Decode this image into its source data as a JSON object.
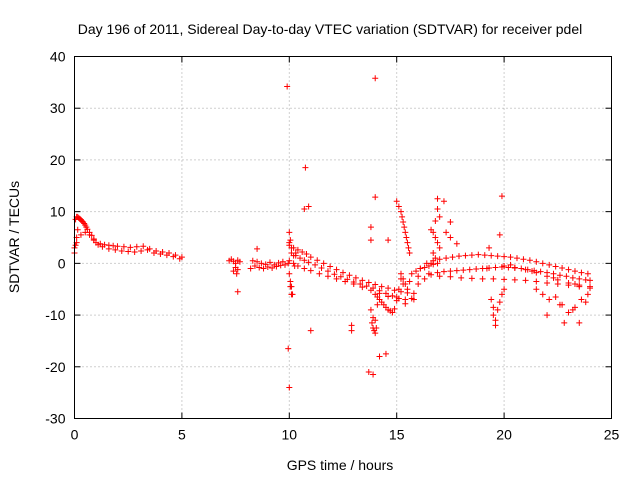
{
  "chart_data": {
    "type": "scatter",
    "title": "Day 196 of 2011, Sidereal Day-to-day VTEC variation (SDTVAR) for receiver pdel",
    "xlabel": "GPS time / hours",
    "ylabel": "SDTVAR / TECUs",
    "xlim": [
      0,
      25
    ],
    "ylim": [
      -30,
      40
    ],
    "xticks": [
      0,
      5,
      10,
      15,
      20,
      25
    ],
    "yticks": [
      -30,
      -20,
      -10,
      0,
      10,
      20,
      30,
      40
    ],
    "xtick_labels": [
      "0",
      "5",
      "10",
      "15",
      "20",
      "25"
    ],
    "ytick_labels": [
      "-30",
      "-20",
      "-10",
      "0",
      "10",
      "20",
      "30",
      "40"
    ],
    "grid": true,
    "marker": "+",
    "color": "#ff0000",
    "series": [
      {
        "name": "SDTVAR",
        "x": [
          0.0,
          0.05,
          0.1,
          0.15,
          0.2,
          0.25,
          0.3,
          0.35,
          0.4,
          0.45,
          0.5,
          0.55,
          0.6,
          0.7,
          0.8,
          0.9,
          1.0,
          1.2,
          1.4,
          1.6,
          1.8,
          2.0,
          2.3,
          2.6,
          2.9,
          3.2,
          3.5,
          3.8,
          4.1,
          4.4,
          4.7,
          5.0,
          0.1,
          0.3,
          0.5,
          0.7,
          0.9,
          1.1,
          1.3,
          1.6,
          1.9,
          2.2,
          2.5,
          2.8,
          3.1,
          3.4,
          3.7,
          4.0,
          4.3,
          4.6,
          4.9,
          0.0,
          0.05,
          0.1,
          0.15,
          7.2,
          7.3,
          7.4,
          7.5,
          7.6,
          7.7,
          7.5,
          7.6,
          7.4,
          7.55,
          8.2,
          8.4,
          8.6,
          8.8,
          9.0,
          9.2,
          9.4,
          9.6,
          9.8,
          8.3,
          8.5,
          8.7,
          8.9,
          9.1,
          9.3,
          9.5,
          9.7,
          10.0,
          10.2,
          10.4,
          10.6,
          10.8,
          11.0,
          11.3,
          11.6,
          11.9,
          12.2,
          12.5,
          12.8,
          13.1,
          13.4,
          13.7,
          14.0,
          14.3,
          14.6,
          14.9,
          15.2,
          15.5,
          15.8,
          10.1,
          10.3,
          10.5,
          10.7,
          10.9,
          11.2,
          11.5,
          11.8,
          12.1,
          12.4,
          12.7,
          13.0,
          13.3,
          13.6,
          13.9,
          14.2,
          14.5,
          14.8,
          15.1,
          15.4,
          15.7,
          10.0,
          10.2,
          10.4,
          10.7,
          11.0,
          11.4,
          11.8,
          12.2,
          12.6,
          13.0,
          13.4,
          13.8,
          14.2,
          14.6,
          15.0,
          15.4,
          15.8,
          16.0,
          16.3,
          16.6,
          16.9,
          17.2,
          17.5,
          17.8,
          18.1,
          18.4,
          18.7,
          19.0,
          19.3,
          19.6,
          19.9,
          20.2,
          20.5,
          20.8,
          21.1,
          21.4,
          21.7,
          22.0,
          22.3,
          22.6,
          22.9,
          23.2,
          23.5,
          23.8,
          24.0,
          16.1,
          16.4,
          16.7,
          17.0,
          17.3,
          17.6,
          17.9,
          18.2,
          18.5,
          18.8,
          19.1,
          19.4,
          19.7,
          20.0,
          20.3,
          20.6,
          20.9,
          21.2,
          21.5,
          21.8,
          22.1,
          22.4,
          22.7,
          23.0,
          23.3,
          23.6,
          23.9,
          16.0,
          16.5,
          17.0,
          17.5,
          18.0,
          18.5,
          19.0,
          19.5,
          20.0,
          20.5,
          21.0,
          21.5,
          22.0,
          22.5,
          23.0,
          23.5,
          24.0,
          19.4,
          19.5,
          19.5,
          19.6,
          19.6,
          19.7,
          19.8,
          19.9,
          20.0,
          21.5,
          21.8,
          22.1,
          22.4,
          22.7,
          23.0,
          23.3,
          23.6,
          23.9,
          22.0,
          22.6,
          23.2,
          23.8,
          15.0,
          15.1,
          15.2,
          15.25,
          15.3,
          15.35,
          15.4,
          15.45,
          15.5,
          15.55,
          15.6,
          15.2,
          15.3,
          15.4,
          15.5,
          15.6,
          16.6,
          16.7,
          16.8,
          16.9,
          17.0,
          16.7,
          16.8,
          16.6,
          14.0,
          14.2,
          14.4,
          14.6,
          14.8,
          14.1,
          14.3,
          14.5,
          14.7,
          14.9,
          10.0,
          10.05,
          10.1,
          10.15,
          9.95,
          10.2,
          10.1,
          10.05,
          10.0,
          10.3,
          10.25,
          13.8,
          13.9,
          14.0,
          14.05,
          13.95,
          13.85,
          14.1,
          9.9,
          14.0,
          10.0,
          10.9,
          10.7,
          10.75,
          11.0,
          9.95,
          14.0,
          10.0,
          10.05,
          10.1,
          13.7,
          13.9,
          14.5,
          14.2,
          16.9,
          17.2,
          17.5,
          19.9,
          19.8,
          19.3,
          19.2,
          22.8,
          23.5,
          7.6,
          8.5,
          12.9,
          12.9,
          13.8,
          13.9,
          14.6,
          13.8,
          14.0,
          15.0,
          15.1,
          15.2,
          15.3,
          16.9,
          17.0,
          16.8,
          17.3,
          17.5,
          17.8,
          20.0,
          20.5,
          21.0,
          21.5,
          22.0,
          22.5,
          23.0,
          23.5,
          24.0,
          20.3,
          21.3,
          22.3,
          23.3,
          15.7,
          15.9,
          16.1,
          16.3,
          16.5,
          16.7,
          16.9
        ],
        "y": [
          3.0,
          8.5,
          9.0,
          9.0,
          8.8,
          8.6,
          8.4,
          8.2,
          8.0,
          7.7,
          7.4,
          7.0,
          6.6,
          6.0,
          5.4,
          4.7,
          4.0,
          3.8,
          3.6,
          3.5,
          3.4,
          3.3,
          3.2,
          3.1,
          3.2,
          3.3,
          2.8,
          2.4,
          2.2,
          2.0,
          1.6,
          1.2,
          4.0,
          5.5,
          6.0,
          5.5,
          4.5,
          3.6,
          3.2,
          2.8,
          2.6,
          2.4,
          2.3,
          2.2,
          2.4,
          2.6,
          2.0,
          1.8,
          1.6,
          1.3,
          0.9,
          2.0,
          3.5,
          5.0,
          6.5,
          0.5,
          0.8,
          0.4,
          0.0,
          0.6,
          0.3,
          -0.8,
          -1.2,
          -1.5,
          -2.0,
          -1.0,
          -0.5,
          -0.8,
          -1.0,
          -0.7,
          -0.9,
          -0.6,
          -0.4,
          -0.3,
          0.5,
          0.3,
          0.0,
          -0.2,
          0.2,
          -0.3,
          0.1,
          0.3,
          3.5,
          3.0,
          2.6,
          2.2,
          1.8,
          1.2,
          0.6,
          0.0,
          -0.6,
          -1.2,
          -1.8,
          -2.3,
          -2.8,
          -3.3,
          -3.7,
          -4.1,
          -4.5,
          -4.8,
          -5.2,
          -5.5,
          -5.7,
          -5.8,
          2.0,
          1.5,
          1.0,
          0.6,
          0.2,
          -0.3,
          -0.9,
          -1.5,
          -2.1,
          -2.6,
          -3.1,
          -3.6,
          -4.0,
          -4.4,
          -4.8,
          -5.3,
          -5.8,
          -6.3,
          -6.8,
          -7.0,
          -6.8,
          0.5,
          0.0,
          -0.5,
          -1.0,
          -1.4,
          -2.0,
          -2.5,
          -3.0,
          -3.5,
          -4.0,
          -4.6,
          -5.2,
          -5.8,
          -6.4,
          -7.2,
          -7.8,
          -7.0,
          -4.0,
          -3.0,
          -2.2,
          -1.8,
          -1.6,
          -1.5,
          -1.4,
          -1.3,
          -1.2,
          -1.1,
          -1.0,
          -0.9,
          -0.8,
          -0.7,
          -0.8,
          -0.9,
          -1.0,
          -1.2,
          -1.4,
          -1.6,
          -1.8,
          -2.0,
          -2.3,
          -2.5,
          -2.8,
          -3.0,
          -3.2,
          -3.3,
          -1.0,
          0.0,
          0.5,
          0.8,
          1.0,
          1.2,
          1.4,
          1.5,
          1.6,
          1.7,
          1.6,
          1.5,
          1.4,
          1.3,
          1.2,
          1.0,
          0.8,
          0.6,
          0.3,
          0.0,
          -0.3,
          -0.6,
          -0.9,
          -1.2,
          -1.5,
          -1.8,
          -2.0,
          -2.5,
          -2.0,
          -2.5,
          -2.6,
          -2.8,
          -2.9,
          -3.0,
          -3.0,
          -3.1,
          -3.2,
          -3.3,
          -3.5,
          -3.8,
          -4.0,
          -4.2,
          -4.5,
          -4.8,
          -7.0,
          -8.5,
          -10.0,
          -11.0,
          -12.0,
          -9.0,
          -7.5,
          -6.0,
          -5.0,
          -5.0,
          -6.0,
          -7.0,
          -6.5,
          -8.0,
          -9.5,
          -8.5,
          -7.0,
          -6.0,
          -10.0,
          -8.0,
          -9.0,
          -7.5,
          12.0,
          11.0,
          10.0,
          9.0,
          8.0,
          7.0,
          6.0,
          5.0,
          4.0,
          3.0,
          2.0,
          -2.0,
          -3.0,
          -4.0,
          -5.0,
          -3.5,
          6.5,
          6.0,
          5.0,
          4.0,
          3.0,
          2.0,
          1.0,
          0.0,
          -6.0,
          -7.0,
          -8.0,
          -9.0,
          -9.5,
          -6.5,
          -7.5,
          -8.5,
          -9.2,
          -8.8,
          -2.0,
          -3.5,
          -4.5,
          -6.0,
          0.0,
          1.5,
          3.0,
          4.5,
          6.0,
          2.0,
          -0.5,
          -9.0,
          -10.5,
          -11.0,
          -12.5,
          -13.0,
          -11.5,
          -8.0,
          34.2,
          35.8,
          -24.0,
          11.0,
          10.5,
          18.5,
          -13.0,
          -16.5,
          12.8,
          4.0,
          -4.5,
          -6.0,
          -21.0,
          -21.5,
          -17.5,
          -18.0,
          12.5,
          12.0,
          8.0,
          13.0,
          5.5,
          3.0,
          -1.0,
          -11.5,
          -11.5,
          -5.5,
          2.8,
          -12.0,
          -13.0,
          7.0,
          -12.5,
          4.5,
          4.5,
          -13.5,
          -6.5,
          -5.0,
          -3.0,
          -4.0,
          10.5,
          9.0,
          8.2,
          6.0,
          5.0,
          3.8,
          -0.5,
          -0.8,
          -1.2,
          -1.8,
          -2.5,
          -3.2,
          -3.8,
          -4.2,
          -4.5,
          -0.3,
          -1.5,
          -2.8,
          -4.0,
          -2.0,
          -1.5,
          -1.0,
          -0.8,
          -0.5,
          -0.2,
          0.0
        ]
      }
    ]
  }
}
